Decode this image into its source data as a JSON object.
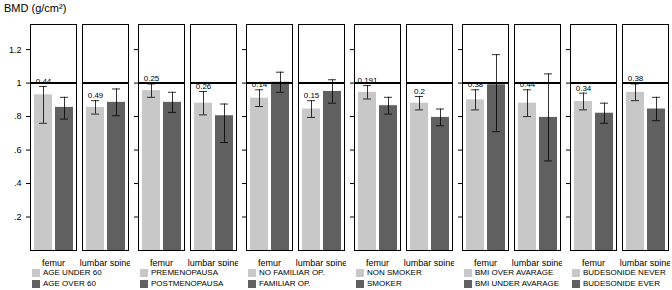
{
  "chart_data": [
    {
      "type": "bar",
      "title": "BMD (g/cm²)",
      "categories": [
        "femur",
        "lumbar spine"
      ],
      "ylim": [
        0,
        1.35
      ],
      "yticks": [
        {
          "value": 0.2,
          "label": ".2"
        },
        {
          "value": 0.4,
          "label": ".4"
        },
        {
          "value": 0.6,
          "label": ".6"
        },
        {
          "value": 0.8,
          "label": ".8"
        },
        1,
        1.2
      ],
      "reference_line": 1.0,
      "series": [
        {
          "name": "AGE UNDER 60",
          "color": "#c8c8c8",
          "values": [
            0.93,
            0.855
          ],
          "errors_low": [
            0.17,
            0.04
          ],
          "errors_high": [
            0.05,
            0.04
          ],
          "p_values": [
            "0.44",
            "0.49"
          ]
        },
        {
          "name": "AGE OVER 60",
          "color": "#606060",
          "values": [
            0.855,
            0.885
          ],
          "errors_low": [
            0.07,
            0.08
          ],
          "errors_high": [
            0.06,
            0.08
          ]
        }
      ]
    },
    {
      "type": "bar",
      "categories": [
        "femur",
        "lumbar spine"
      ],
      "ylim": [
        0,
        1.35
      ],
      "yticks": [
        {
          "value": 0.2,
          "label": ".2"
        },
        {
          "value": 0.4,
          "label": ".4"
        },
        {
          "value": 0.6,
          "label": ".6"
        },
        {
          "value": 0.8,
          "label": ".8"
        },
        1,
        1.2
      ],
      "tick_labels": "x",
      "reference_line": 1.0,
      "series": [
        {
          "name": "PREMENOPAUSA",
          "color": "#c8c8c8",
          "values": [
            0.955,
            0.88
          ],
          "errors_low": [
            0.04,
            0.07
          ],
          "errors_high": [
            0.04,
            0.07
          ],
          "p_values": [
            "0.25",
            "0.26"
          ]
        },
        {
          "name": "POSTMENOPAUSA",
          "color": "#606060",
          "values": [
            0.885,
            0.805
          ],
          "errors_low": [
            0.06,
            0.16
          ],
          "errors_high": [
            0.06,
            0.07
          ]
        }
      ]
    },
    {
      "type": "bar",
      "categories": [
        "femur",
        "lumbar spine"
      ],
      "ylim": [
        0,
        1.35
      ],
      "yticks": [
        {
          "value": 0.2,
          "label": ".2"
        },
        {
          "value": 0.4,
          "label": ".4"
        },
        {
          "value": 0.6,
          "label": ".6"
        },
        {
          "value": 0.8,
          "label": ".8"
        },
        1,
        1.2
      ],
      "tick_labels": "x",
      "reference_line": 1.0,
      "series": [
        {
          "name": "NO FAMILIAR OP.",
          "color": "#c8c8c8",
          "values": [
            0.91,
            0.845
          ],
          "errors_low": [
            0.05,
            0.05
          ],
          "errors_high": [
            0.05,
            0.05
          ],
          "p_values": [
            "0.14",
            "0.15"
          ]
        },
        {
          "name": "FAMILIAR OP.",
          "color": "#606060",
          "values": [
            1.005,
            0.95
          ],
          "errors_low": [
            0.06,
            0.07
          ],
          "errors_high": [
            0.06,
            0.07
          ]
        }
      ]
    },
    {
      "type": "bar",
      "categories": [
        "femur",
        "lumbar spine"
      ],
      "ylim": [
        0,
        1.35
      ],
      "yticks": [
        {
          "value": 0.2,
          "label": ".2"
        },
        {
          "value": 0.4,
          "label": ".4"
        },
        {
          "value": 0.6,
          "label": ".6"
        },
        {
          "value": 0.8,
          "label": ".8"
        },
        1,
        1.2
      ],
      "tick_labels": "x",
      "reference_line": 1.0,
      "series": [
        {
          "name": "NON SMOKER",
          "color": "#c8c8c8",
          "values": [
            0.945,
            0.88
          ],
          "errors_low": [
            0.04,
            0.04
          ],
          "errors_high": [
            0.04,
            0.04
          ],
          "p_values": [
            "0.191",
            "0.2"
          ]
        },
        {
          "name": "SMOKER",
          "color": "#606060",
          "values": [
            0.865,
            0.795
          ],
          "errors_low": [
            0.05,
            0.05
          ],
          "errors_high": [
            0.05,
            0.05
          ]
        }
      ]
    },
    {
      "type": "bar",
      "categories": [
        "femur",
        "lumbar spine"
      ],
      "ylim": [
        0,
        1.35
      ],
      "yticks": [
        {
          "value": 0.2,
          "label": ".2"
        },
        {
          "value": 0.4,
          "label": ".4"
        },
        {
          "value": 0.6,
          "label": ".6"
        },
        {
          "value": 0.8,
          "label": ".8"
        },
        1,
        1.2
      ],
      "tick_labels": "x",
      "reference_line": 1.0,
      "series": [
        {
          "name": "BMI OVER AVARAGE",
          "color": "#c8c8c8",
          "values": [
            0.9,
            0.88
          ],
          "errors_low": [
            0.06,
            0.08
          ],
          "errors_high": [
            0.06,
            0.08
          ],
          "p_values": [
            "0.38",
            "0.44"
          ]
        },
        {
          "name": "BMI UNDER AVARAGE",
          "color": "#606060",
          "values": [
            0.99,
            0.795
          ],
          "errors_low": [
            0.28,
            0.26
          ],
          "errors_high": [
            0.18,
            0.26
          ]
        }
      ]
    },
    {
      "type": "bar",
      "categories": [
        "femur",
        "lumbar spine"
      ],
      "ylim": [
        0,
        1.35
      ],
      "yticks": [
        {
          "value": 0.2,
          "label": ".2"
        },
        {
          "value": 0.4,
          "label": ".4"
        },
        {
          "value": 0.6,
          "label": ".6"
        },
        {
          "value": 0.8,
          "label": ".8"
        },
        1,
        1.2
      ],
      "tick_labels": "x",
      "reference_line": 1.0,
      "series": [
        {
          "name": "BUDESONIDE NEVER",
          "color": "#c8c8c8",
          "values": [
            0.89,
            0.945
          ],
          "errors_low": [
            0.05,
            0.05
          ],
          "errors_high": [
            0.05,
            0.05
          ],
          "p_values": [
            "0.34",
            "0.38"
          ]
        },
        {
          "name": "BUDESONIDE EVER",
          "color": "#606060",
          "values": [
            0.82,
            0.845
          ],
          "errors_low": [
            0.06,
            0.07
          ],
          "errors_high": [
            0.06,
            0.07
          ]
        }
      ]
    }
  ]
}
